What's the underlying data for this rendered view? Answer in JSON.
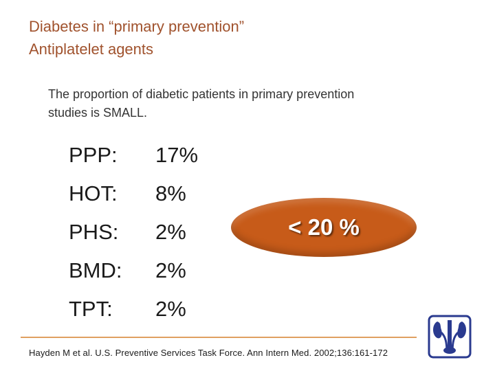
{
  "title": {
    "line1": "Diabetes in “primary prevention”",
    "line2": "Antiplatelet agents"
  },
  "intro": {
    "line1": "The proportion of diabetic patients in primary prevention",
    "line2": "studies is SMALL."
  },
  "studies": [
    {
      "name": "PPP:",
      "percent": "17%"
    },
    {
      "name": "HOT:",
      "percent": "8%"
    },
    {
      "name": "PHS:",
      "percent": "2%"
    },
    {
      "name": "BMD:",
      "percent": "2%"
    },
    {
      "name": "TPT:",
      "percent": "2%"
    }
  ],
  "callout": {
    "text": "< 20 %"
  },
  "citation": "Hayden M et al. U.S. Preventive Services Task Force. Ann Intern Med. 2002;136:161-172",
  "logo": {
    "icon": "kidney-logo-icon"
  },
  "colors": {
    "title": "#a0522d",
    "accent": "#c75b19",
    "rule": "#e0a060",
    "logo": "#2a3a8f"
  }
}
